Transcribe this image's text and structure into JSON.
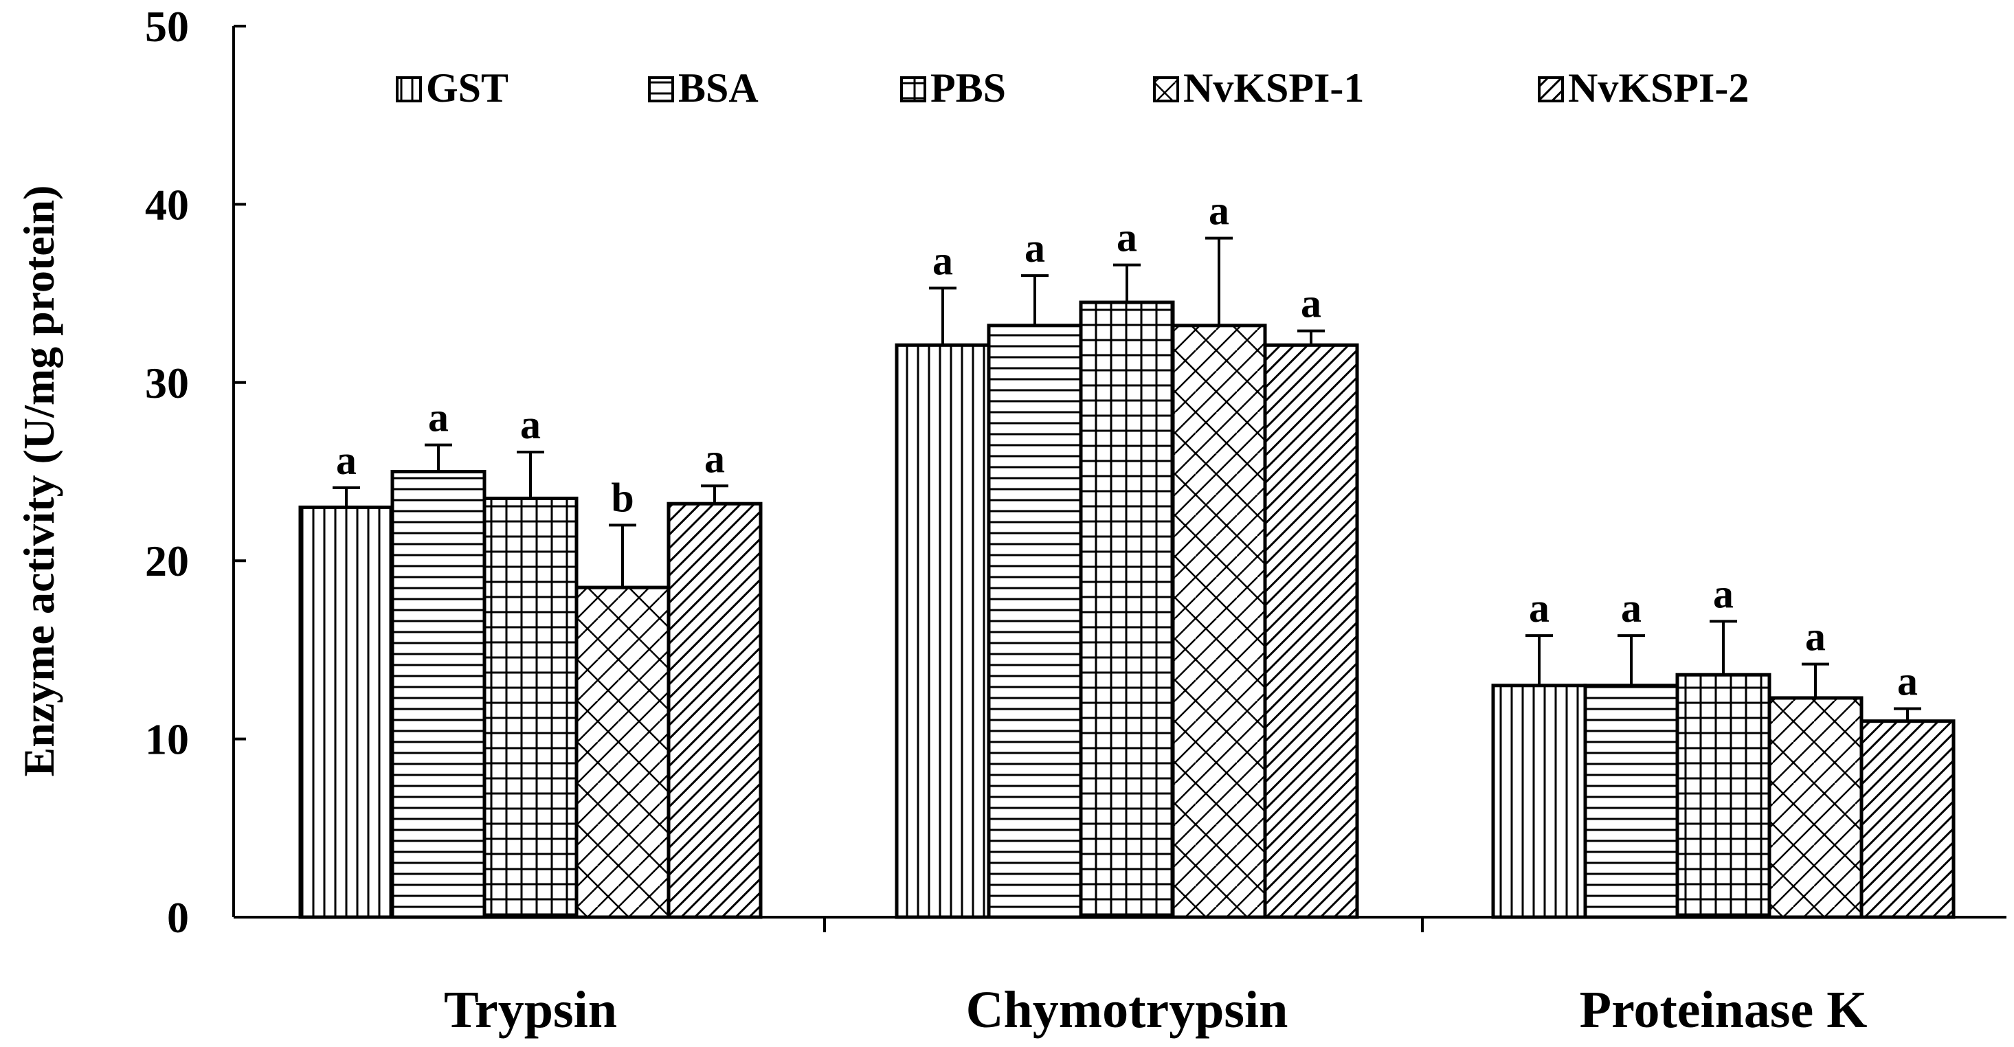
{
  "chart_data": {
    "type": "bar",
    "ylabel": "Enzyme activity (U/mg protein)",
    "xlabel": "",
    "ylim": [
      0,
      50
    ],
    "yticks": [
      0,
      10,
      20,
      30,
      40,
      50
    ],
    "categories": [
      "Trypsin",
      "Chymotrypsin",
      "Proteinase K"
    ],
    "legend_position": "top",
    "series": [
      {
        "name": "GST",
        "pattern": "vertical",
        "values": [
          23.0,
          32.1,
          13.0
        ],
        "errors": [
          1.1,
          3.2,
          2.8
        ],
        "labels": [
          "a",
          "a",
          "a"
        ]
      },
      {
        "name": "BSA",
        "pattern": "horizontal",
        "values": [
          25.0,
          33.2,
          13.0
        ],
        "errors": [
          1.5,
          2.8,
          2.8
        ],
        "labels": [
          "a",
          "a",
          "a"
        ]
      },
      {
        "name": "PBS",
        "pattern": "grid",
        "values": [
          23.5,
          34.5,
          13.6
        ],
        "errors": [
          2.6,
          2.1,
          3.0
        ],
        "labels": [
          "a",
          "a",
          "a"
        ]
      },
      {
        "name": "NvKSPI-1",
        "pattern": "zigzag",
        "values": [
          18.5,
          33.2,
          12.3
        ],
        "errors": [
          3.5,
          4.9,
          1.9
        ],
        "labels": [
          "b",
          "a",
          "a"
        ]
      },
      {
        "name": "NvKSPI-2",
        "pattern": "diagonal",
        "values": [
          23.2,
          32.1,
          11.0
        ],
        "errors": [
          1.0,
          0.8,
          0.7
        ],
        "labels": [
          "a",
          "a",
          "a"
        ]
      }
    ]
  }
}
